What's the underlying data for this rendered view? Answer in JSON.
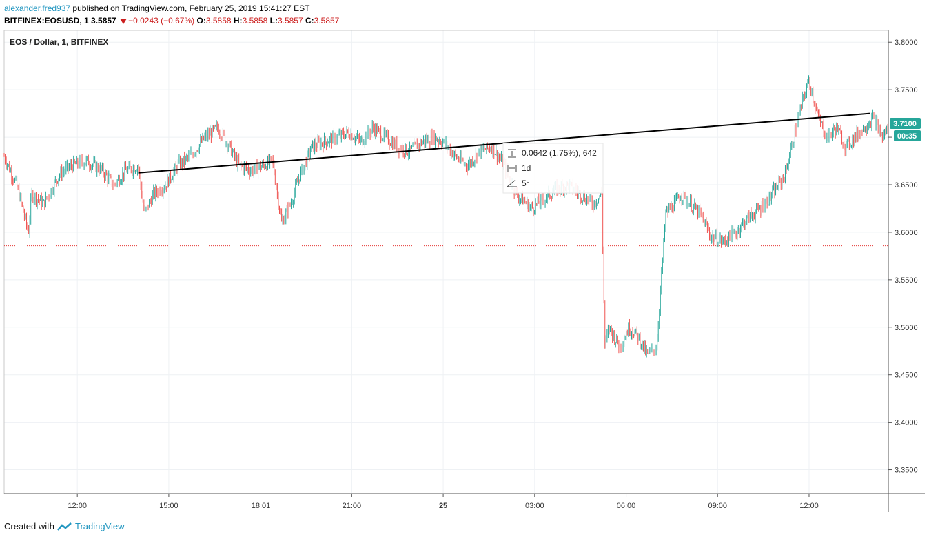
{
  "header": {
    "username": "alexander.fred937",
    "published_text": "published on TradingView.com, February 25, 2019 15:41:27 EST",
    "symbol": "BITFINEX:EOSUSD, 1",
    "last_price": "3.5857",
    "change": "−0.0243 (−0.67%)",
    "ohlc": [
      {
        "label": "O:",
        "value": "3.5858"
      },
      {
        "label": "H:",
        "value": "3.5858"
      },
      {
        "label": "L:",
        "value": "3.5857"
      },
      {
        "label": "C:",
        "value": "3.5857"
      }
    ]
  },
  "chart_title": "EOS / Dollar, 1, BITFINEX",
  "price_badge": "3.7100",
  "time_badge": "00:35",
  "measure": {
    "delta": "0.0642 (1.75%), 642",
    "duration": "1d",
    "angle": "5°"
  },
  "footer": {
    "created_with": "Created with",
    "brand": "TradingView"
  },
  "colors": {
    "up": "#26a69a",
    "down": "#ef5350",
    "trendline": "#000000",
    "badge": "#26a69a",
    "dotted": "#e53935"
  },
  "chart_data": {
    "type": "line",
    "title": "EOS / Dollar, 1, BITFINEX",
    "xlabel": "",
    "ylabel": "",
    "ylim": [
      3.325,
      3.8125
    ],
    "y_ticks": [
      "3.8000",
      "3.7500",
      "3.7000",
      "3.6500",
      "3.6000",
      "3.5500",
      "3.5000",
      "3.4500",
      "3.4000",
      "3.3500"
    ],
    "x_ticks": [
      "12:00",
      "15:00",
      "18:01",
      "21:00",
      "25",
      "03:00",
      "06:00",
      "09:00",
      "12:00"
    ],
    "x_tick_hours": [
      12,
      15,
      18.02,
      21,
      24,
      27,
      30,
      33,
      36
    ],
    "xlim_hours": [
      9.6,
      38.6
    ],
    "series": [
      {
        "x": [
          9.6,
          10.0,
          10.4,
          10.5,
          10.9,
          11.4,
          11.8,
          12.3,
          12.8,
          13.2,
          13.6,
          14.0,
          14.2,
          14.5,
          14.9,
          15.3,
          15.7,
          16.2,
          16.6,
          17.0,
          17.3,
          17.7,
          18.1,
          18.4,
          18.7,
          19.0,
          19.3,
          19.7,
          20.1,
          20.5,
          20.9,
          21.3,
          21.7,
          22.1,
          22.5,
          22.9,
          23.3,
          23.7,
          24.0,
          24.4,
          24.8,
          25.2,
          25.6,
          26.0,
          26.4,
          26.9,
          27.3,
          27.7,
          28.1,
          28.5,
          28.9,
          29.2,
          29.3,
          29.45,
          29.6,
          29.8,
          30.1,
          30.4,
          30.7,
          31.0,
          31.3,
          31.6,
          31.8,
          32.1,
          32.4,
          32.8,
          33.2,
          33.6,
          34.0,
          34.4,
          34.8,
          35.2,
          35.5,
          35.8,
          36.0,
          36.3,
          36.6,
          36.9,
          37.2,
          37.5,
          37.8,
          38.1,
          38.4,
          38.6
        ],
        "close": [
          3.68,
          3.65,
          3.6,
          3.64,
          3.63,
          3.66,
          3.67,
          3.675,
          3.665,
          3.65,
          3.665,
          3.67,
          3.62,
          3.64,
          3.65,
          3.67,
          3.68,
          3.7,
          3.71,
          3.69,
          3.67,
          3.665,
          3.67,
          3.675,
          3.61,
          3.63,
          3.66,
          3.69,
          3.695,
          3.7,
          3.705,
          3.695,
          3.71,
          3.7,
          3.69,
          3.685,
          3.695,
          3.7,
          3.695,
          3.68,
          3.67,
          3.685,
          3.69,
          3.67,
          3.64,
          3.625,
          3.635,
          3.645,
          3.65,
          3.64,
          3.63,
          3.64,
          3.48,
          3.5,
          3.49,
          3.48,
          3.5,
          3.49,
          3.47,
          3.48,
          3.62,
          3.63,
          3.64,
          3.63,
          3.62,
          3.595,
          3.59,
          3.6,
          3.615,
          3.625,
          3.64,
          3.66,
          3.7,
          3.74,
          3.76,
          3.72,
          3.7,
          3.71,
          3.69,
          3.7,
          3.71,
          3.72,
          3.7,
          3.71
        ]
      }
    ],
    "trendline": {
      "from": [
        14.0,
        3.6625
      ],
      "to": [
        38.0,
        3.725
      ]
    },
    "dotted_level": 3.5857
  }
}
